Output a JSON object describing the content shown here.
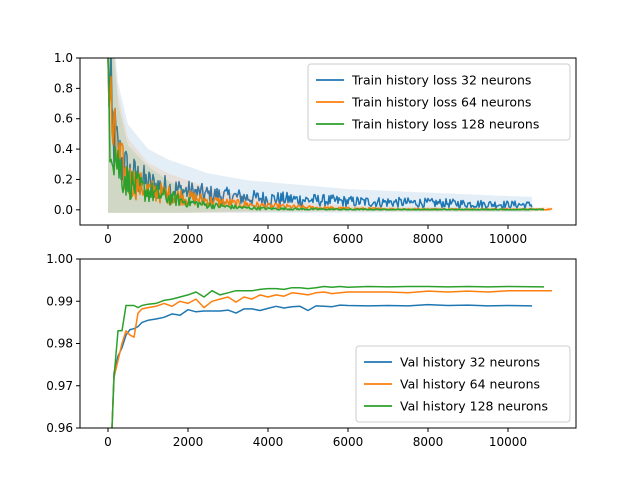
{
  "chart_data": [
    {
      "type": "line",
      "title": "",
      "xlabel": "",
      "ylabel": "",
      "xlim": [
        -700,
        11700
      ],
      "ylim": [
        -0.1,
        1.0
      ],
      "xticks": [
        0,
        2000,
        4000,
        6000,
        8000,
        10000
      ],
      "yticks": [
        0.0,
        0.2,
        0.4,
        0.6,
        0.8,
        1.0
      ],
      "ytick_decimals": 1,
      "grid": false,
      "legend_position": "top-right",
      "series": [
        {
          "name": "Train history loss 32 neurons",
          "color": "#1f77b4",
          "x_end": 10600,
          "shade": true,
          "x": [
            0,
            100,
            250,
            500,
            1000,
            1500,
            2000,
            2500,
            3000,
            3500,
            4000,
            5000,
            6000,
            7000,
            8000,
            9000,
            10000,
            10600
          ],
          "y": [
            1.0,
            0.55,
            0.36,
            0.24,
            0.17,
            0.14,
            0.12,
            0.1,
            0.09,
            0.08,
            0.075,
            0.065,
            0.055,
            0.05,
            0.045,
            0.04,
            0.035,
            0.033
          ]
        },
        {
          "name": "Train history loss 64 neurons",
          "color": "#ff7f0e",
          "x_end": 11100,
          "shade": true,
          "x": [
            0,
            100,
            250,
            500,
            1000,
            1500,
            2000,
            2500,
            3000,
            3500,
            4000,
            5000,
            6000,
            7000,
            8000,
            9000,
            10000,
            11100
          ],
          "y": [
            1.0,
            0.52,
            0.33,
            0.2,
            0.13,
            0.1,
            0.08,
            0.06,
            0.045,
            0.035,
            0.025,
            0.015,
            0.008,
            0.005,
            0.004,
            0.003,
            0.003,
            0.003
          ]
        },
        {
          "name": "Train history loss 128 neurons",
          "color": "#2ca02c",
          "x_end": 10900,
          "shade": true,
          "x": [
            0,
            100,
            250,
            500,
            1000,
            1500,
            2000,
            2500,
            3000,
            3500,
            4000,
            5000,
            6000,
            7000,
            8000,
            9000,
            10000,
            10900
          ],
          "y": [
            1.0,
            0.5,
            0.3,
            0.18,
            0.12,
            0.08,
            0.05,
            0.03,
            0.02,
            0.012,
            0.008,
            0.004,
            0.002,
            0.001,
            0.001,
            0.001,
            0.001,
            0.001
          ]
        }
      ]
    },
    {
      "type": "line",
      "title": "",
      "xlabel": "",
      "ylabel": "",
      "xlim": [
        -700,
        11700
      ],
      "ylim": [
        0.96,
        1.0
      ],
      "xticks": [
        0,
        2000,
        4000,
        6000,
        8000,
        10000
      ],
      "yticks": [
        0.96,
        0.97,
        0.98,
        0.99,
        1.0
      ],
      "ytick_decimals": 2,
      "grid": false,
      "legend_position": "bottom-right",
      "series": [
        {
          "name": "Val history 32 neurons",
          "color": "#1f77b4",
          "x_end": 10600,
          "shade": false,
          "x": [
            100,
            150,
            250,
            350,
            450,
            550,
            650,
            750,
            850,
            1000,
            1200,
            1400,
            1600,
            1800,
            2000,
            2200,
            2400,
            2600,
            2800,
            3000,
            3200,
            3400,
            3600,
            3800,
            4000,
            4200,
            4400,
            4600,
            4800,
            5000,
            5200,
            5400,
            5600,
            5800,
            6000,
            6500,
            7000,
            7500,
            8000,
            8500,
            9000,
            9500,
            10000,
            10600
          ],
          "y": [
            0.96,
            0.973,
            0.977,
            0.979,
            0.982,
            0.9833,
            0.9835,
            0.984,
            0.985,
            0.9855,
            0.9858,
            0.9862,
            0.987,
            0.9867,
            0.988,
            0.9875,
            0.9877,
            0.9877,
            0.9877,
            0.9879,
            0.9872,
            0.9882,
            0.9882,
            0.9878,
            0.9883,
            0.9888,
            0.9884,
            0.9887,
            0.9888,
            0.9878,
            0.9889,
            0.9888,
            0.9887,
            0.9891,
            0.989,
            0.9889,
            0.989,
            0.9889,
            0.9892,
            0.989,
            0.9891,
            0.9889,
            0.989,
            0.9889
          ]
        },
        {
          "name": "Val history 64 neurons",
          "color": "#ff7f0e",
          "x_end": 11100,
          "shade": false,
          "x": [
            100,
            150,
            250,
            350,
            450,
            550,
            650,
            750,
            850,
            1000,
            1200,
            1400,
            1600,
            1800,
            2000,
            2200,
            2400,
            2600,
            2800,
            3000,
            3200,
            3400,
            3600,
            3800,
            4000,
            4200,
            4400,
            4600,
            4800,
            5000,
            5200,
            5400,
            5600,
            5800,
            6000,
            6500,
            7000,
            7500,
            8000,
            8500,
            9000,
            9500,
            10000,
            11100
          ],
          "y": [
            0.96,
            0.972,
            0.976,
            0.98,
            0.983,
            0.982,
            0.9815,
            0.9872,
            0.9882,
            0.9885,
            0.9888,
            0.9895,
            0.9888,
            0.99,
            0.9895,
            0.9905,
            0.9885,
            0.99,
            0.9905,
            0.991,
            0.9898,
            0.991,
            0.9905,
            0.9915,
            0.991,
            0.9915,
            0.9912,
            0.992,
            0.9918,
            0.9915,
            0.992,
            0.9922,
            0.9918,
            0.992,
            0.9922,
            0.9922,
            0.9922,
            0.992,
            0.9924,
            0.9922,
            0.9924,
            0.9922,
            0.9925,
            0.9925
          ]
        },
        {
          "name": "Val history 128 neurons",
          "color": "#2ca02c",
          "x_end": 10900,
          "shade": false,
          "x": [
            100,
            150,
            250,
            350,
            450,
            550,
            650,
            750,
            850,
            1000,
            1200,
            1400,
            1600,
            1800,
            2000,
            2200,
            2400,
            2600,
            2800,
            3000,
            3200,
            3400,
            3600,
            3800,
            4000,
            4200,
            4400,
            4600,
            4800,
            5000,
            5200,
            5400,
            5600,
            5800,
            6000,
            6500,
            7000,
            7500,
            8000,
            8500,
            9000,
            9500,
            10000,
            10900
          ],
          "y": [
            0.96,
            0.972,
            0.983,
            0.983,
            0.989,
            0.989,
            0.989,
            0.9885,
            0.989,
            0.9893,
            0.9895,
            0.9902,
            0.9905,
            0.991,
            0.9915,
            0.9922,
            0.991,
            0.9925,
            0.9915,
            0.992,
            0.9925,
            0.9925,
            0.9925,
            0.9928,
            0.993,
            0.993,
            0.9928,
            0.9932,
            0.9932,
            0.993,
            0.9932,
            0.9935,
            0.9933,
            0.9935,
            0.9933,
            0.9935,
            0.9934,
            0.9935,
            0.9935,
            0.9934,
            0.9935,
            0.9934,
            0.9935,
            0.9934
          ]
        }
      ]
    }
  ]
}
